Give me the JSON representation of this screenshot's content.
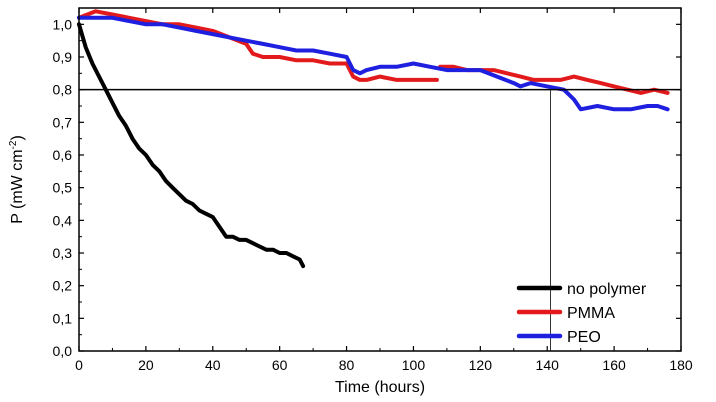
{
  "chart_data": {
    "type": "line",
    "title": "",
    "xlabel": "Time (hours)",
    "ylabel_main": "P (mW cm",
    "ylabel_sup": "-2",
    "ylabel_close": ")",
    "xlim": [
      0,
      180
    ],
    "ylim": [
      0.0,
      1.05
    ],
    "x_ticks": [
      0,
      20,
      40,
      60,
      80,
      100,
      120,
      140,
      160,
      180
    ],
    "x_tick_labels": [
      "0",
      "20",
      "40",
      "60",
      "80",
      "100",
      "120",
      "140",
      "160",
      "180"
    ],
    "y_ticks": [
      0.0,
      0.1,
      0.2,
      0.3,
      0.4,
      0.5,
      0.6,
      0.7,
      0.8,
      0.9,
      1.0
    ],
    "y_tick_labels": [
      "0,0",
      "0,1",
      "0,2",
      "0,3",
      "0,4",
      "0,5",
      "0,6",
      "0,7",
      "0,8",
      "0,9",
      "1,0"
    ],
    "grid": false,
    "legend_position": "bottom-right",
    "reference_hline": 0.8,
    "reference_vline": 141,
    "series": [
      {
        "name": "no polymer",
        "color": "#000000",
        "x": [
          0,
          2,
          4,
          6,
          8,
          10,
          12,
          14,
          16,
          18,
          20,
          22,
          24,
          26,
          28,
          30,
          32,
          34,
          36,
          38,
          40,
          42,
          44,
          46,
          48,
          50,
          52,
          54,
          56,
          58,
          60,
          62,
          64,
          66,
          67
        ],
        "y": [
          1.0,
          0.93,
          0.88,
          0.84,
          0.8,
          0.76,
          0.72,
          0.69,
          0.65,
          0.62,
          0.6,
          0.57,
          0.55,
          0.52,
          0.5,
          0.48,
          0.46,
          0.45,
          0.43,
          0.42,
          0.41,
          0.38,
          0.35,
          0.35,
          0.34,
          0.34,
          0.33,
          0.32,
          0.31,
          0.31,
          0.3,
          0.3,
          0.29,
          0.28,
          0.26
        ]
      },
      {
        "name": "PMMA",
        "color": "#e31a1c",
        "x": [
          0,
          5,
          10,
          15,
          20,
          25,
          30,
          35,
          40,
          45,
          50,
          52,
          55,
          60,
          65,
          70,
          75,
          80,
          82,
          84,
          86,
          90,
          95,
          100,
          105,
          107
        ],
        "y": [
          1.02,
          1.04,
          1.03,
          1.02,
          1.01,
          1.0,
          1.0,
          0.99,
          0.98,
          0.96,
          0.94,
          0.91,
          0.9,
          0.9,
          0.89,
          0.89,
          0.88,
          0.88,
          0.84,
          0.83,
          0.83,
          0.84,
          0.83,
          0.83,
          0.83,
          0.83
        ]
      },
      {
        "name": "PMMA",
        "color": "#e31a1c",
        "x": [
          108,
          112,
          116,
          120,
          124,
          128,
          132,
          136,
          140,
          144,
          148,
          152,
          156,
          160,
          164,
          168,
          172,
          176
        ],
        "y": [
          0.87,
          0.87,
          0.86,
          0.86,
          0.86,
          0.85,
          0.84,
          0.83,
          0.83,
          0.83,
          0.84,
          0.83,
          0.82,
          0.81,
          0.8,
          0.79,
          0.8,
          0.79
        ]
      },
      {
        "name": "PEO",
        "color": "#1f1fe0",
        "x": [
          0,
          5,
          10,
          15,
          20,
          25,
          30,
          35,
          40,
          45,
          50,
          55,
          60,
          65,
          70,
          75,
          80,
          82,
          84,
          86,
          90,
          95,
          100,
          105,
          110,
          115,
          120,
          125,
          130,
          132,
          135,
          140,
          145,
          148,
          150,
          155,
          160,
          165,
          170,
          173,
          176
        ],
        "y": [
          1.02,
          1.02,
          1.02,
          1.01,
          1.0,
          1.0,
          0.99,
          0.98,
          0.97,
          0.96,
          0.95,
          0.94,
          0.93,
          0.92,
          0.92,
          0.91,
          0.9,
          0.86,
          0.85,
          0.86,
          0.87,
          0.87,
          0.88,
          0.87,
          0.86,
          0.86,
          0.86,
          0.84,
          0.82,
          0.81,
          0.82,
          0.81,
          0.8,
          0.77,
          0.74,
          0.75,
          0.74,
          0.74,
          0.75,
          0.75,
          0.74
        ]
      }
    ],
    "legend": [
      {
        "label": "no polymer",
        "color": "#000000"
      },
      {
        "label": "PMMA",
        "color": "#e31a1c"
      },
      {
        "label": "PEO",
        "color": "#1f1fe0"
      }
    ]
  }
}
